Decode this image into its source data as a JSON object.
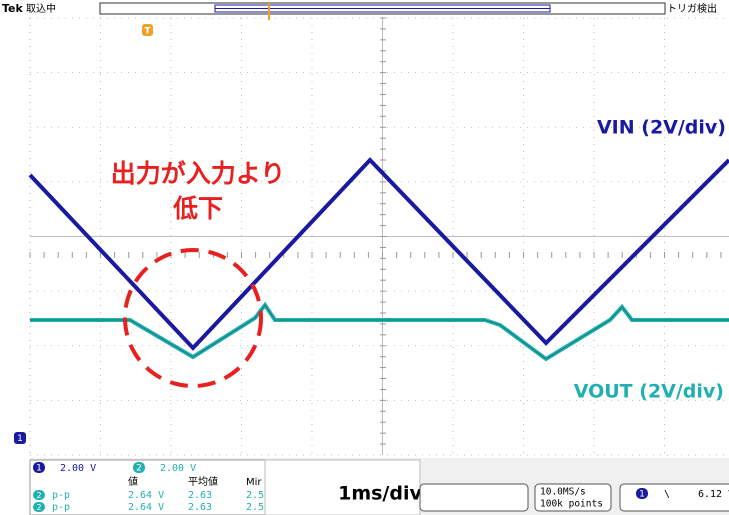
{
  "header": {
    "brand": "Tek",
    "status": "取込中",
    "trigger_status": "トリガ検出",
    "trigger_marker": "T"
  },
  "traces": [
    {
      "label": "VIN (2V/div)",
      "color": "#1a1aa0"
    },
    {
      "label": "VOUT (2V/div)",
      "color": "#20b0b0"
    }
  ],
  "annotation": {
    "lines": [
      "出力が入力より",
      "低下"
    ]
  },
  "channels": [
    {
      "badge": "1",
      "scale": "2.00 V"
    },
    {
      "badge": "2",
      "scale": "2.00 V"
    }
  ],
  "ground_marker": "1",
  "measurements": {
    "headers": [
      "値",
      "平均値",
      "Mir"
    ],
    "rows": [
      {
        "badge": "2",
        "name": "p-p",
        "cells": [
          "2.64 V",
          "2.63",
          "2.5"
        ]
      },
      {
        "badge": "2",
        "name": "p-p",
        "cells": [
          "2.64 V",
          "2.63",
          "2.5"
        ]
      }
    ]
  },
  "timebase": "1ms/div",
  "acquisition": {
    "rate": "10.0MS/s",
    "points": "100k points"
  },
  "trigger": {
    "badge": "1",
    "slope": "\\",
    "level": "6.12 V"
  }
}
